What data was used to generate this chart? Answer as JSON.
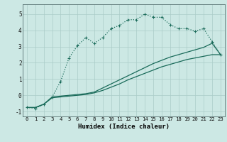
{
  "xlabel": "Humidex (Indice chaleur)",
  "xlim": [
    -0.5,
    23.5
  ],
  "ylim": [
    -1.3,
    5.6
  ],
  "bg_color": "#cce8e4",
  "grid_color": "#aaccc8",
  "line_color": "#1a6b5a",
  "line1_x": [
    0,
    1,
    2,
    3,
    4,
    5,
    6,
    7,
    8,
    9,
    10,
    11,
    12,
    13,
    14,
    15,
    16,
    17,
    18,
    19,
    20,
    21,
    22,
    23
  ],
  "line1_y": [
    -0.75,
    -0.8,
    -0.55,
    -0.1,
    0.85,
    2.3,
    3.05,
    3.55,
    3.2,
    3.55,
    4.1,
    4.3,
    4.65,
    4.65,
    5.0,
    4.8,
    4.8,
    4.35,
    4.1,
    4.1,
    3.95,
    4.1,
    3.3,
    2.5
  ],
  "line2_x": [
    0,
    1,
    2,
    3,
    4,
    5,
    6,
    7,
    8,
    9,
    10,
    11,
    12,
    13,
    14,
    15,
    16,
    17,
    18,
    19,
    20,
    21,
    22,
    23
  ],
  "line2_y": [
    -0.75,
    -0.75,
    -0.55,
    -0.15,
    -0.1,
    -0.05,
    0.0,
    0.05,
    0.15,
    0.3,
    0.5,
    0.7,
    0.95,
    1.15,
    1.35,
    1.55,
    1.75,
    1.9,
    2.05,
    2.2,
    2.3,
    2.4,
    2.5,
    2.5
  ],
  "line3_x": [
    0,
    1,
    2,
    3,
    4,
    5,
    6,
    7,
    8,
    9,
    10,
    11,
    12,
    13,
    14,
    15,
    16,
    17,
    18,
    19,
    20,
    21,
    22,
    23
  ],
  "line3_y": [
    -0.75,
    -0.75,
    -0.55,
    -0.1,
    -0.05,
    0.0,
    0.05,
    0.1,
    0.2,
    0.45,
    0.7,
    0.95,
    1.2,
    1.45,
    1.7,
    1.95,
    2.15,
    2.35,
    2.5,
    2.65,
    2.8,
    2.95,
    3.2,
    2.5
  ],
  "ytick_values": [
    -1,
    0,
    1,
    2,
    3,
    4,
    5
  ],
  "font_size": 5.5
}
